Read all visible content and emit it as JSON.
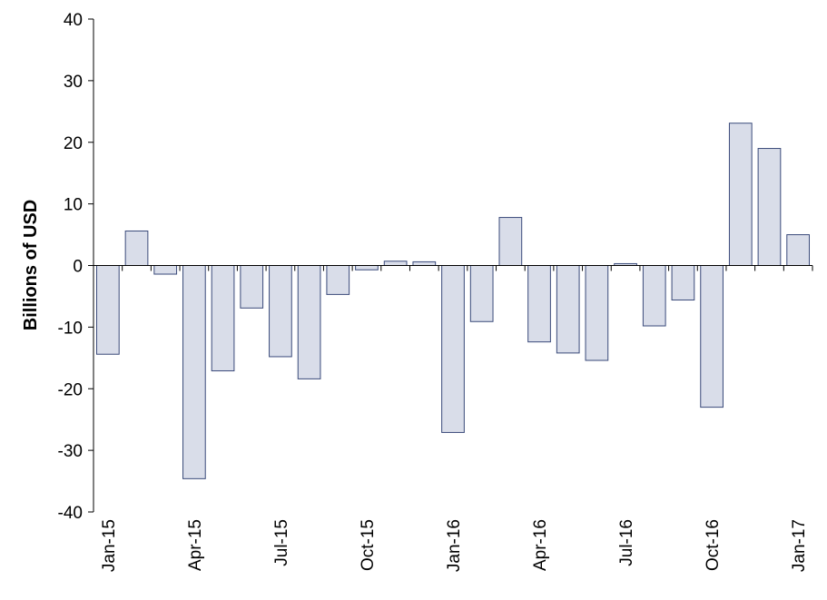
{
  "chart_data": {
    "type": "bar",
    "ylabel": "Billions of USD",
    "ylim": [
      -40,
      40
    ],
    "yticks": [
      40,
      30,
      20,
      10,
      0,
      -10,
      -20,
      -30,
      -40
    ],
    "categories": [
      "Jan-15",
      "Feb-15",
      "Mar-15",
      "Apr-15",
      "May-15",
      "Jun-15",
      "Jul-15",
      "Aug-15",
      "Sep-15",
      "Oct-15",
      "Nov-15",
      "Dec-15",
      "Jan-16",
      "Feb-16",
      "Mar-16",
      "Apr-16",
      "May-16",
      "Jun-16",
      "Jul-16",
      "Aug-16",
      "Sep-16",
      "Oct-16",
      "Nov-16",
      "Dec-16",
      "Jan-17"
    ],
    "values": [
      -14.4,
      5.6,
      -1.4,
      -34.6,
      -17.1,
      -6.9,
      -14.8,
      -18.4,
      -4.7,
      -0.7,
      0.7,
      0.6,
      -27.1,
      -9.1,
      7.8,
      -12.4,
      -14.2,
      -15.4,
      0.3,
      -9.8,
      -5.6,
      -23.0,
      23.1,
      19.0,
      5.0
    ],
    "xtick_labels": [
      "Jan-15",
      "Apr-15",
      "Jul-15",
      "Oct-15",
      "Jan-16",
      "Apr-16",
      "Jul-16",
      "Oct-16",
      "Jan-17"
    ],
    "bar_color": "#d9dde9",
    "bar_edge_color": "#3a4a7a",
    "grid": false
  }
}
